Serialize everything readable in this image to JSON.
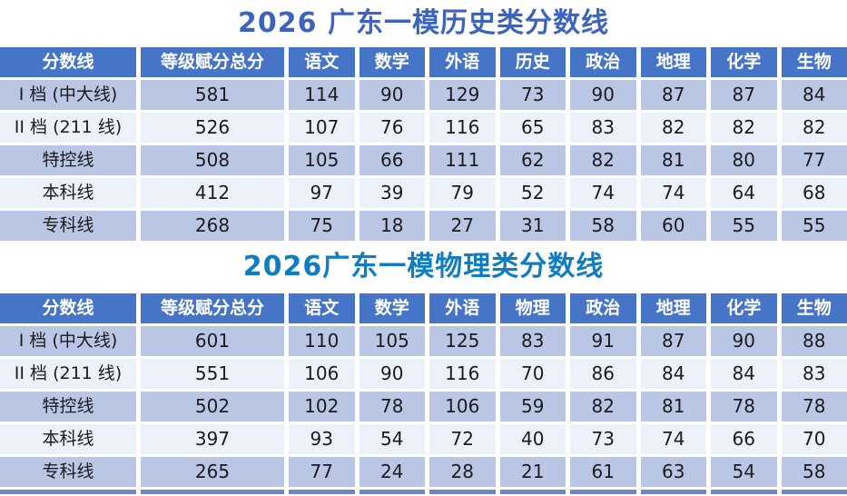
{
  "colors": {
    "header_bg": "#4674c6",
    "row_odd_bg": "#b9c6e4",
    "row_even_bg": "#edf1f9",
    "cell_text": "#1c1c1e",
    "title_history_color": "#3d64bd",
    "title_physics_color": "#0f7dc2",
    "bottom_strip_color": "#6d87c3"
  },
  "tables": [
    {
      "title": "2026 广东一模历史类分数线",
      "title_color": "#3d64bd",
      "columns": [
        "分数线",
        "等级赋分总分",
        "语文",
        "数学",
        "外语",
        "历史",
        "政治",
        "地理",
        "化学",
        "生物"
      ],
      "rows": [
        [
          "I 档 (中大线)",
          "581",
          "114",
          "90",
          "129",
          "73",
          "90",
          "87",
          "87",
          "84"
        ],
        [
          "II 档 (211 线)",
          "526",
          "107",
          "76",
          "116",
          "65",
          "83",
          "82",
          "82",
          "82"
        ],
        [
          "特控线",
          "508",
          "105",
          "66",
          "111",
          "62",
          "82",
          "81",
          "80",
          "77"
        ],
        [
          "本科线",
          "412",
          "97",
          "39",
          "79",
          "52",
          "74",
          "74",
          "64",
          "68"
        ],
        [
          "专科线",
          "268",
          "75",
          "18",
          "27",
          "31",
          "58",
          "60",
          "55",
          "55"
        ]
      ]
    },
    {
      "title": "2026广东一模物理类分数线",
      "title_color": "#0f7dc2",
      "columns": [
        "分数线",
        "等级赋分总分",
        "语文",
        "数学",
        "外语",
        "物理",
        "政治",
        "地理",
        "化学",
        "生物"
      ],
      "rows": [
        [
          "I 档 (中大线)",
          "601",
          "110",
          "105",
          "125",
          "83",
          "91",
          "87",
          "90",
          "88"
        ],
        [
          "II 档 (211 线)",
          "551",
          "106",
          "90",
          "116",
          "70",
          "86",
          "84",
          "84",
          "83"
        ],
        [
          "特控线",
          "502",
          "102",
          "78",
          "106",
          "59",
          "82",
          "81",
          "78",
          "78"
        ],
        [
          "本科线",
          "397",
          "93",
          "54",
          "72",
          "40",
          "73",
          "74",
          "66",
          "70"
        ],
        [
          "专科线",
          "265",
          "77",
          "24",
          "28",
          "21",
          "61",
          "63",
          "54",
          "58"
        ]
      ]
    }
  ]
}
